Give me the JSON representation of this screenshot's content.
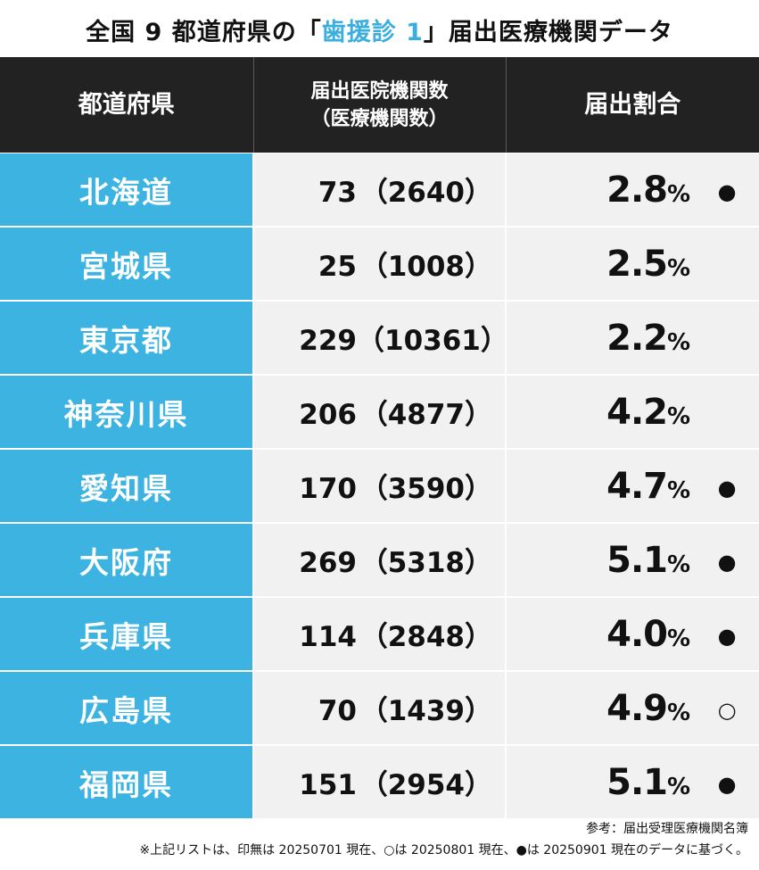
{
  "title": {
    "prefix": "全国 9 都道府県の「",
    "highlight": "歯援診 1",
    "suffix": "」届出医療機関データ"
  },
  "headers": {
    "prefecture": "都道府県",
    "count_line1": "届出医院機関数",
    "count_line2": "（医療機関数）",
    "ratio": "届出割合"
  },
  "rows": [
    {
      "prefecture": "北海道",
      "count": "73",
      "total": "（2640）",
      "ratio": "2.8",
      "unit": "%",
      "mark": "●"
    },
    {
      "prefecture": "宮城県",
      "count": "25",
      "total": "（1008）",
      "ratio": "2.5",
      "unit": "%",
      "mark": ""
    },
    {
      "prefecture": "東京都",
      "count": "229",
      "total": "（10361）",
      "ratio": "2.2",
      "unit": "%",
      "mark": ""
    },
    {
      "prefecture": "神奈川県",
      "count": "206",
      "total": "（4877）",
      "ratio": "4.2",
      "unit": "%",
      "mark": ""
    },
    {
      "prefecture": "愛知県",
      "count": "170",
      "total": "（3590）",
      "ratio": "4.7",
      "unit": "%",
      "mark": "●"
    },
    {
      "prefecture": "大阪府",
      "count": "269",
      "total": "（5318）",
      "ratio": "5.1",
      "unit": "%",
      "mark": "●"
    },
    {
      "prefecture": "兵庫県",
      "count": "114",
      "total": "（2848）",
      "ratio": "4.0",
      "unit": "%",
      "mark": "●"
    },
    {
      "prefecture": "広島県",
      "count": "70",
      "total": "（1439）",
      "ratio": "4.9",
      "unit": "%",
      "mark": "○"
    },
    {
      "prefecture": "福岡県",
      "count": "151",
      "total": "（2954）",
      "ratio": "5.1",
      "unit": "%",
      "mark": "●"
    }
  ],
  "notes": {
    "source": "参考：届出受理医療機関名簿",
    "legend": "※上記リストは、印無は 20250701 現在、○は 20250801 現在、●は 20250901 現在のデータに基づく。"
  }
}
